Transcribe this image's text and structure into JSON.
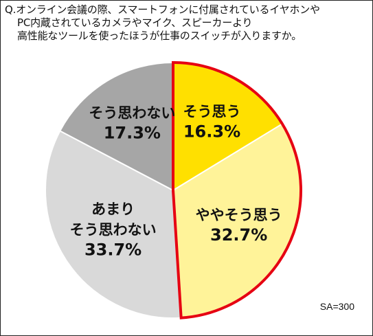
{
  "chart_data": {
    "type": "pie",
    "title_lines": [
      "Q.オンライン会議の際、スマートフォンに付属されているイヤホンや",
      "PC内蔵されているカメラやマイク、スピーカーより",
      "高性能なツールを使ったほうが仕事のスイッチが入りますか。"
    ],
    "slices": [
      {
        "label_lines": [
          "そう思う"
        ],
        "value": 16.3,
        "value_label": "16.3%",
        "color": "#FFE000",
        "highlight": true
      },
      {
        "label_lines": [
          "ややそう思う"
        ],
        "value": 32.7,
        "value_label": "32.7%",
        "color": "#FFF399",
        "highlight": true
      },
      {
        "label_lines": [
          "あまり",
          "そう思わない"
        ],
        "value": 33.7,
        "value_label": "33.7%",
        "color": "#D9D9D9",
        "highlight": false
      },
      {
        "label_lines": [
          "そう思わない"
        ],
        "value": 17.3,
        "value_label": "17.3%",
        "color": "#A6A6A6",
        "highlight": false
      }
    ],
    "highlight_color": "#E60012",
    "sample_note": "SA=300"
  }
}
